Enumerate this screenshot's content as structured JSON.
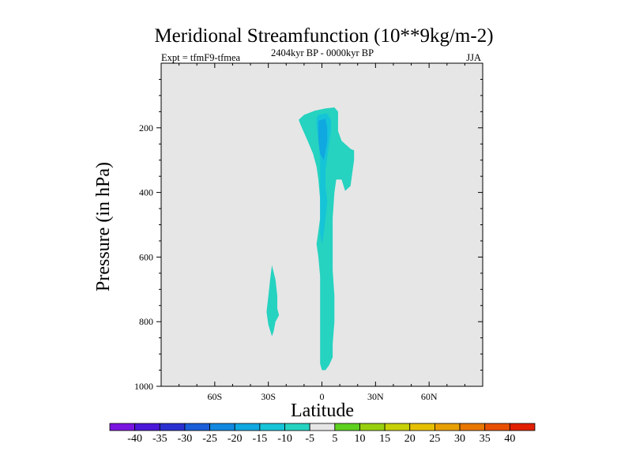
{
  "chart_data": {
    "type": "contour",
    "title": "Meridional Streamfunction (10**9kg/m-2)",
    "subtitle_left": "Expt = tfmF9-tfmea",
    "subtitle_center": "2404kyr BP - 0000kyr BP",
    "subtitle_right": "JJA",
    "xlabel": "Latitude",
    "ylabel": "Pressure (in hPa)",
    "xlim": [
      -90,
      90
    ],
    "ylim": [
      1000,
      0
    ],
    "x_ticks": [
      {
        "value": -60,
        "label": "60S"
      },
      {
        "value": -30,
        "label": "30S"
      },
      {
        "value": 0,
        "label": "0"
      },
      {
        "value": 30,
        "label": "30N"
      },
      {
        "value": 60,
        "label": "60N"
      }
    ],
    "y_ticks": [
      {
        "value": 200,
        "label": "200"
      },
      {
        "value": 400,
        "label": "400"
      },
      {
        "value": 600,
        "label": "600"
      },
      {
        "value": 800,
        "label": "800"
      },
      {
        "value": 1000,
        "label": "1000"
      }
    ],
    "background_color": "#e6e6e6",
    "contour_levels": [
      "-40",
      "-35",
      "-30",
      "-25",
      "-20",
      "-15",
      "-10",
      "-5",
      "5",
      "10",
      "15",
      "20",
      "25",
      "30",
      "35",
      "40"
    ],
    "colorbar_colors": [
      "#7a14e0",
      "#4b18d8",
      "#2a30d0",
      "#1a5ed8",
      "#1288e0",
      "#10a8e0",
      "#16c4d8",
      "#26d2c0",
      "#e6e6e6",
      "#5ed020",
      "#98d010",
      "#c8d008",
      "#e6c000",
      "#e8a000",
      "#e87800",
      "#e85000",
      "#e02000"
    ],
    "regions": [
      {
        "level": "-5",
        "color": "#26d2c0",
        "outline": [
          [
            -12,
            190
          ],
          [
            -13,
            175
          ],
          [
            -10,
            160
          ],
          [
            -4,
            147
          ],
          [
            2,
            140
          ],
          [
            7,
            137
          ],
          [
            9,
            150
          ],
          [
            9,
            175
          ],
          [
            9,
            210
          ],
          [
            11,
            240
          ],
          [
            16,
            265
          ],
          [
            18,
            270
          ],
          [
            18,
            300
          ],
          [
            17,
            340
          ],
          [
            16,
            380
          ],
          [
            13,
            395
          ],
          [
            11,
            360
          ],
          [
            8,
            360
          ],
          [
            7,
            400
          ],
          [
            6,
            480
          ],
          [
            6,
            560
          ],
          [
            6,
            640
          ],
          [
            7,
            720
          ],
          [
            7,
            800
          ],
          [
            6,
            870
          ],
          [
            6,
            910
          ],
          [
            4,
            935
          ],
          [
            2,
            950
          ],
          [
            0,
            950
          ],
          [
            -1,
            930
          ],
          [
            -1,
            890
          ],
          [
            -1,
            840
          ],
          [
            -1,
            780
          ],
          [
            -1,
            720
          ],
          [
            -1,
            660
          ],
          [
            -2,
            600
          ],
          [
            -3,
            560
          ],
          [
            -2,
            520
          ],
          [
            -1,
            480
          ],
          [
            -1,
            420
          ],
          [
            -2,
            360
          ],
          [
            -3,
            320
          ],
          [
            -5,
            280
          ],
          [
            -8,
            240
          ]
        ]
      },
      {
        "level": "-5",
        "color": "#26d2c0",
        "outline": [
          [
            -28,
            625
          ],
          [
            -26,
            670
          ],
          [
            -25,
            720
          ],
          [
            -25,
            760
          ],
          [
            -24,
            780
          ],
          [
            -26,
            800
          ],
          [
            -27,
            830
          ],
          [
            -28,
            845
          ],
          [
            -30,
            810
          ],
          [
            -31,
            770
          ],
          [
            -30,
            720
          ],
          [
            -29,
            670
          ]
        ]
      },
      {
        "level": "-10",
        "color": "#16c4d8",
        "outline": [
          [
            -2,
            160
          ],
          [
            3,
            155
          ],
          [
            5,
            175
          ],
          [
            5,
            210
          ],
          [
            4,
            250
          ],
          [
            3,
            290
          ],
          [
            2,
            330
          ],
          [
            2,
            380
          ],
          [
            3,
            430
          ],
          [
            2,
            480
          ],
          [
            1,
            530
          ],
          [
            0,
            560
          ],
          [
            -1,
            530
          ],
          [
            -1,
            470
          ],
          [
            -1,
            410
          ],
          [
            -1,
            350
          ],
          [
            -1,
            290
          ],
          [
            -2,
            240
          ],
          [
            -3,
            195
          ],
          [
            -3,
            170
          ]
        ]
      },
      {
        "level": "-15",
        "color": "#10a8e0",
        "outline": [
          [
            -2,
            178
          ],
          [
            2,
            172
          ],
          [
            3,
            200
          ],
          [
            3,
            240
          ],
          [
            2,
            275
          ],
          [
            1,
            300
          ],
          [
            -1,
            280
          ],
          [
            -2,
            240
          ],
          [
            -2,
            205
          ]
        ]
      }
    ]
  }
}
